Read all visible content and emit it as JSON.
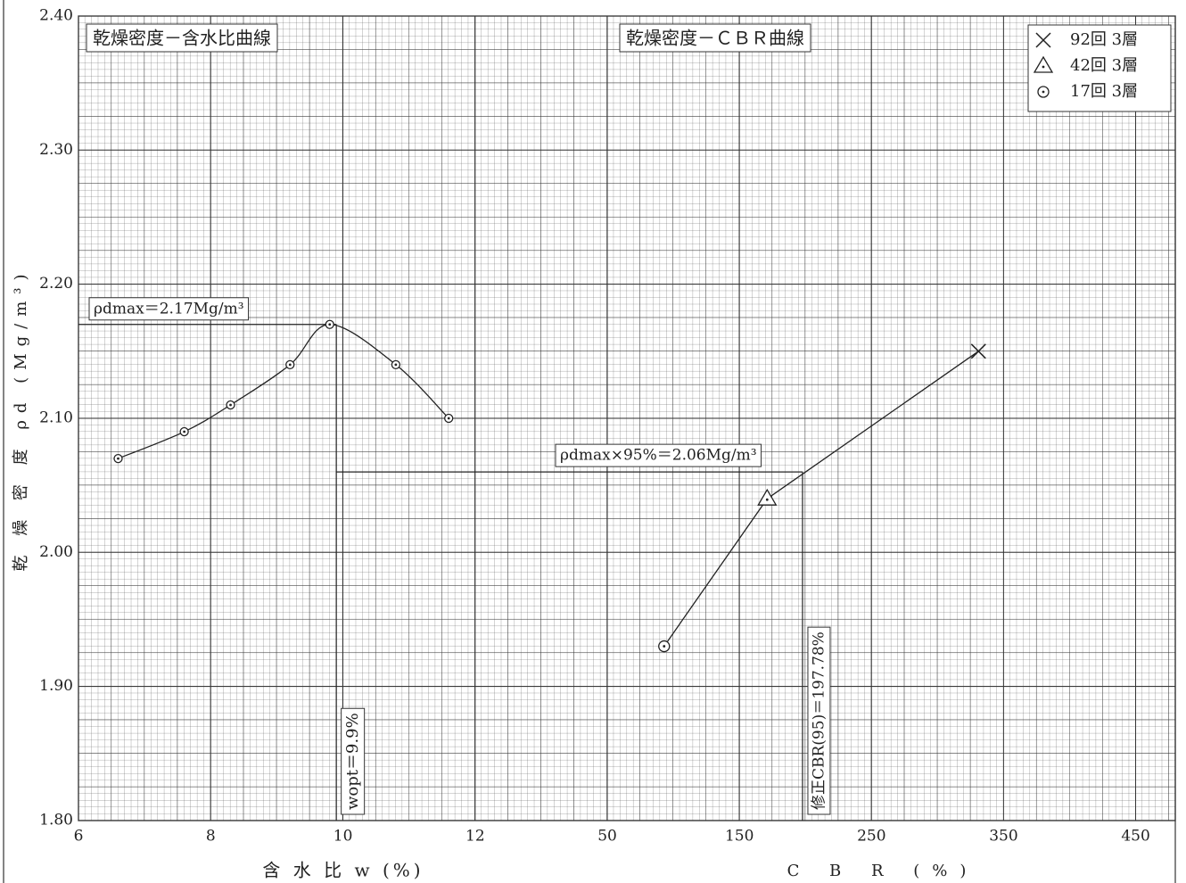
{
  "chart_data": [
    {
      "type": "line",
      "title": "乾燥密度－含水比曲線",
      "x_label": "含 水 比 w (%)",
      "y_label": "乾 燥 密 度 ρd (Mg/m³)",
      "x": [
        6.6,
        7.6,
        8.3,
        9.2,
        9.8,
        10.8,
        11.6
      ],
      "values": [
        2.07,
        2.09,
        2.11,
        2.14,
        2.17,
        2.14,
        2.1
      ],
      "marker": "circle-dot",
      "color": "#222",
      "xlim": [
        6,
        13
      ],
      "xticks": [
        6,
        8,
        10,
        12
      ],
      "ylim": [
        1.8,
        2.4
      ],
      "yticks": [
        {
          "value": 1.8,
          "label": "1.80"
        },
        {
          "value": 1.9,
          "label": "1.90"
        },
        {
          "value": 2.0,
          "label": "2.00"
        },
        {
          "value": 2.1,
          "label": "2.10"
        },
        {
          "value": 2.2,
          "label": "2.20"
        },
        {
          "value": 2.3,
          "label": "2.30"
        },
        {
          "value": 2.4,
          "label": "2.40"
        }
      ],
      "grid": true,
      "annotations": [
        {
          "text": "ρdmax＝2.17Mg/m³",
          "value": 2.17
        },
        {
          "text": "wopt＝9.9%",
          "value": 9.9
        }
      ]
    },
    {
      "type": "scatter",
      "title": "乾燥密度－ＣＢＲ曲線",
      "x_label": "C B R (%)",
      "series": [
        {
          "name": "92回 3層",
          "marker": "x",
          "color": "#222",
          "x": [
            331
          ],
          "values": [
            2.15
          ]
        },
        {
          "name": "42回 3層",
          "marker": "triangle-dot",
          "color": "#222",
          "x": [
            171
          ],
          "values": [
            2.04
          ]
        },
        {
          "name": "17回 3層",
          "marker": "circle-dot",
          "color": "#222",
          "x": [
            93
          ],
          "values": [
            1.93
          ]
        }
      ],
      "xlim": [
        0,
        480
      ],
      "xticks": [
        50,
        150,
        250,
        350,
        450
      ],
      "ylim": [
        1.8,
        2.4
      ],
      "grid": true,
      "legend": "upper right",
      "annotations": [
        {
          "text": "ρdmax×95%＝2.06Mg/m³",
          "value": 2.06
        },
        {
          "text": "修正CBR(95)＝197.78%",
          "value": 197.78
        }
      ]
    }
  ]
}
